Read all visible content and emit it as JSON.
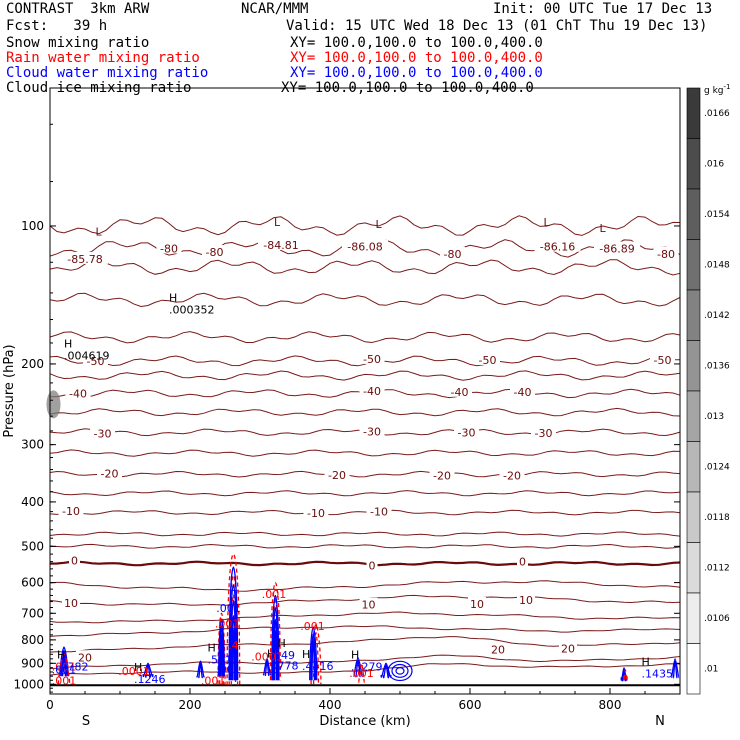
{
  "header": {
    "left1": "CONTRAST  3km ARW",
    "center1": "NCAR/MMM",
    "right1": "Init: 00 UTC Tue 17 Dec 13",
    "left2": "Fcst:   39 h",
    "right2": "Valid: 15 UTC Wed 18 Dec 13 (01 ChT Thu 19 Dec 13)"
  },
  "fields": [
    {
      "name": "Snow mixing ratio",
      "xy": "XY= 100.0,100.0 to 100.0,400.0",
      "color": "#000000"
    },
    {
      "name": "Rain water mixing ratio",
      "xy": "XY= 100.0,100.0 to 100.0,400.0",
      "color": "#ff0000"
    },
    {
      "name": "Cloud water mixing ratio",
      "xy": "XY= 100.0,100.0 to 100.0,400.0",
      "color": "#0000ff"
    },
    {
      "name": "Cloud ice mixing ratio",
      "xy": "XY= 100.0,100.0 to 100.0,400.0",
      "color": "#000000"
    }
  ],
  "chart_data": {
    "type": "contour",
    "xlabel": "Distance (km)",
    "ylabel": "Pressure (hPa)",
    "xlim": [
      0,
      900
    ],
    "ylim": [
      1050,
      50
    ],
    "yscale": "log",
    "x_ticks": [
      "0",
      "200",
      "400",
      "600",
      "800"
    ],
    "x_tick_values": [
      0,
      200,
      400,
      600,
      800
    ],
    "y_ticks": [
      "100",
      "200",
      "300",
      "400",
      "500",
      "600",
      "700",
      "800",
      "900",
      "1000"
    ],
    "y_tick_values": [
      100,
      200,
      300,
      400,
      500,
      600,
      700,
      800,
      900,
      1000
    ],
    "edge_labels": {
      "left": "S",
      "right": "N"
    },
    "colorbar": {
      "unit": "g kg",
      "unit_exp": "-1",
      "labels": [
        ".0166",
        ".016",
        ".0154",
        ".0148",
        ".0142",
        ".0136",
        ".013",
        ".0124",
        ".0118",
        ".0112",
        ".0106",
        ".01"
      ]
    },
    "temperature_contour_labels": [
      {
        "text": "-85.78",
        "x": 50,
        "p": 118
      },
      {
        "text": "-80",
        "x": 170,
        "p": 112
      },
      {
        "text": "-80",
        "x": 235,
        "p": 114
      },
      {
        "text": "-84.81",
        "x": 330,
        "p": 110
      },
      {
        "text": "-86.08",
        "x": 450,
        "p": 111
      },
      {
        "text": "-80",
        "x": 575,
        "p": 115
      },
      {
        "text": "-86.16",
        "x": 725,
        "p": 111
      },
      {
        "text": "-86.89",
        "x": 810,
        "p": 112
      },
      {
        "text": "-80",
        "x": 880,
        "p": 115
      },
      {
        "text": "-50",
        "x": 65,
        "p": 197
      },
      {
        "text": "-50",
        "x": 460,
        "p": 195
      },
      {
        "text": "-50",
        "x": 625,
        "p": 196
      },
      {
        "text": "-50",
        "x": 875,
        "p": 196
      },
      {
        "text": "-40",
        "x": 40,
        "p": 232
      },
      {
        "text": "-40",
        "x": 460,
        "p": 229
      },
      {
        "text": "-40",
        "x": 585,
        "p": 230
      },
      {
        "text": "-40",
        "x": 675,
        "p": 230
      },
      {
        "text": "-30",
        "x": 75,
        "p": 284
      },
      {
        "text": "-30",
        "x": 460,
        "p": 281
      },
      {
        "text": "-30",
        "x": 595,
        "p": 282
      },
      {
        "text": "-30",
        "x": 705,
        "p": 283
      },
      {
        "text": "-20",
        "x": 85,
        "p": 347
      },
      {
        "text": "-20",
        "x": 410,
        "p": 349
      },
      {
        "text": "-20",
        "x": 560,
        "p": 350
      },
      {
        "text": "-20",
        "x": 660,
        "p": 350
      },
      {
        "text": "-10",
        "x": 30,
        "p": 419
      },
      {
        "text": "-10",
        "x": 380,
        "p": 423
      },
      {
        "text": "-10",
        "x": 470,
        "p": 420
      },
      {
        "text": "0",
        "x": 35,
        "p": 537
      },
      {
        "text": "0",
        "x": 460,
        "p": 550
      },
      {
        "text": "0",
        "x": 675,
        "p": 540
      },
      {
        "text": "10",
        "x": 30,
        "p": 664
      },
      {
        "text": "10",
        "x": 455,
        "p": 670
      },
      {
        "text": "10",
        "x": 610,
        "p": 668
      },
      {
        "text": "10",
        "x": 680,
        "p": 655
      },
      {
        "text": "20",
        "x": 50,
        "p": 873
      },
      {
        "text": "20",
        "x": 640,
        "p": 840
      },
      {
        "text": "20",
        "x": 740,
        "p": 835
      }
    ],
    "extrema_labels": [
      {
        "kind": "L",
        "x": 65,
        "p": 105,
        "value": ""
      },
      {
        "kind": "L",
        "x": 320,
        "p": 100,
        "value": ""
      },
      {
        "kind": "L",
        "x": 465,
        "p": 101,
        "value": ""
      },
      {
        "kind": "L",
        "x": 705,
        "p": 100,
        "value": ""
      },
      {
        "kind": "L",
        "x": 785,
        "p": 103,
        "value": ""
      },
      {
        "kind": "H",
        "x": 170,
        "p": 146,
        "value": ".000352"
      },
      {
        "kind": "H",
        "x": 20,
        "p": 184,
        "value": ".004619"
      },
      {
        "kind": "H",
        "x": 10,
        "p": 878,
        "value": ".5782"
      },
      {
        "kind": "H",
        "x": 120,
        "p": 935,
        "value": ".1246"
      },
      {
        "kind": "H",
        "x": 225,
        "p": 849,
        "value": ".5012"
      },
      {
        "kind": "H",
        "x": 310,
        "p": 873,
        "value": ".0778"
      },
      {
        "kind": "H",
        "x": 325,
        "p": 830,
        "value": ".49"
      },
      {
        "kind": "H",
        "x": 360,
        "p": 877,
        "value": ".4416"
      },
      {
        "kind": "H",
        "x": 430,
        "p": 878,
        "value": ".5279"
      },
      {
        "kind": "H",
        "x": 845,
        "p": 911,
        "value": ".1435"
      }
    ],
    "series": [
      {
        "name": "Rain water mixing ratio",
        "color": "#ff0000",
        "labels": [
          {
            "text": ".001",
            "x": 20,
            "p": 932,
            "value": 0.001
          },
          {
            "text": ".001",
            "x": 20,
            "p": 1000,
            "value": 0.001
          },
          {
            "text": ".0001",
            "x": 120,
            "p": 955,
            "value": 0.0001
          },
          {
            "text": ".001",
            "x": 233,
            "p": 1000,
            "value": 0.001
          },
          {
            "text": ".001",
            "x": 253,
            "p": 752,
            "value": 0.001
          },
          {
            "text": ".001",
            "x": 320,
            "p": 648,
            "value": 0.001
          },
          {
            "text": ".001",
            "x": 375,
            "p": 762,
            "value": 0.001
          },
          {
            "text": ".001",
            "x": 445,
            "p": 963,
            "value": 0.001
          },
          {
            "text": ".0001",
            "x": 310,
            "p": 887,
            "value": 0.0001
          },
          {
            "text": ".4",
            "x": 262,
            "p": 838,
            "value": 0.4
          }
        ]
      },
      {
        "name": "Cloud water mixing ratio",
        "color": "#0000ff",
        "labels": [
          {
            "text": ".001",
            "x": 20,
            "p": 947,
            "value": 0.001
          },
          {
            "text": ".001",
            "x": 255,
            "p": 946,
            "value": 0.001
          },
          {
            "text": ".001",
            "x": 255,
            "p": 695,
            "value": 0.001
          }
        ]
      }
    ]
  }
}
